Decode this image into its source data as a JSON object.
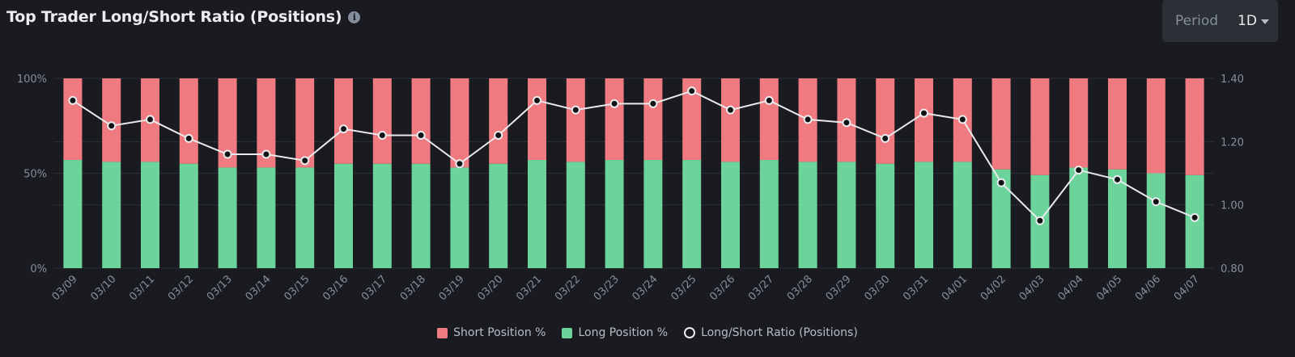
{
  "header": {
    "title": "Top Trader Long/Short Ratio (Positions)",
    "info_icon": "i"
  },
  "period": {
    "label": "Period",
    "value": "1D"
  },
  "legend": {
    "short": "Short Position %",
    "long": "Long Position %",
    "ratio": "Long/Short Ratio (Positions)"
  },
  "colors": {
    "short": "#ef7a80",
    "long": "#6cd39a",
    "line": "#e9eaec",
    "grid": "#2b2f36",
    "axis_text": "#848e9c"
  },
  "chart_data": {
    "type": "bar",
    "stacked": true,
    "title": "Top Trader Long/Short Ratio (Positions)",
    "categories": [
      "03/09",
      "03/10",
      "03/11",
      "03/12",
      "03/13",
      "03/14",
      "03/15",
      "03/16",
      "03/17",
      "03/18",
      "03/19",
      "03/20",
      "03/21",
      "03/22",
      "03/23",
      "03/24",
      "03/25",
      "03/26",
      "03/27",
      "03/28",
      "03/29",
      "03/30",
      "03/31",
      "04/01",
      "04/02",
      "04/03",
      "04/04",
      "04/05",
      "04/06",
      "04/07"
    ],
    "series": [
      {
        "name": "Long Position %",
        "axis": "left",
        "values": [
          57,
          56,
          56,
          55,
          53,
          53,
          53,
          55,
          55,
          55,
          53,
          55,
          57,
          56,
          57,
          57,
          57,
          56,
          57,
          56,
          56,
          55,
          56,
          56,
          52,
          49,
          53,
          52,
          50,
          49
        ]
      },
      {
        "name": "Short Position %",
        "axis": "left",
        "values": [
          43,
          44,
          44,
          45,
          47,
          47,
          47,
          45,
          45,
          45,
          47,
          45,
          43,
          44,
          43,
          43,
          43,
          44,
          43,
          44,
          44,
          45,
          44,
          44,
          48,
          51,
          47,
          48,
          50,
          51
        ]
      },
      {
        "name": "Long/Short Ratio (Positions)",
        "type": "line",
        "axis": "right",
        "values": [
          1.33,
          1.25,
          1.27,
          1.21,
          1.16,
          1.16,
          1.14,
          1.24,
          1.22,
          1.22,
          1.13,
          1.22,
          1.33,
          1.3,
          1.32,
          1.32,
          1.36,
          1.3,
          1.33,
          1.27,
          1.26,
          1.21,
          1.29,
          1.27,
          1.07,
          0.95,
          1.11,
          1.08,
          1.01,
          0.96
        ]
      }
    ],
    "y_left": {
      "ylim": [
        0,
        100
      ],
      "ticks": [
        0,
        50,
        100
      ],
      "tick_labels": [
        "0%",
        "50%",
        "100%"
      ]
    },
    "y_right": {
      "ylim": [
        0.8,
        1.4
      ],
      "ticks": [
        0.8,
        1.0,
        1.2,
        1.4
      ],
      "tick_labels": [
        "0.80",
        "1.00",
        "1.20",
        "1.40"
      ]
    },
    "legend_position": "bottom-center",
    "grid": true
  }
}
